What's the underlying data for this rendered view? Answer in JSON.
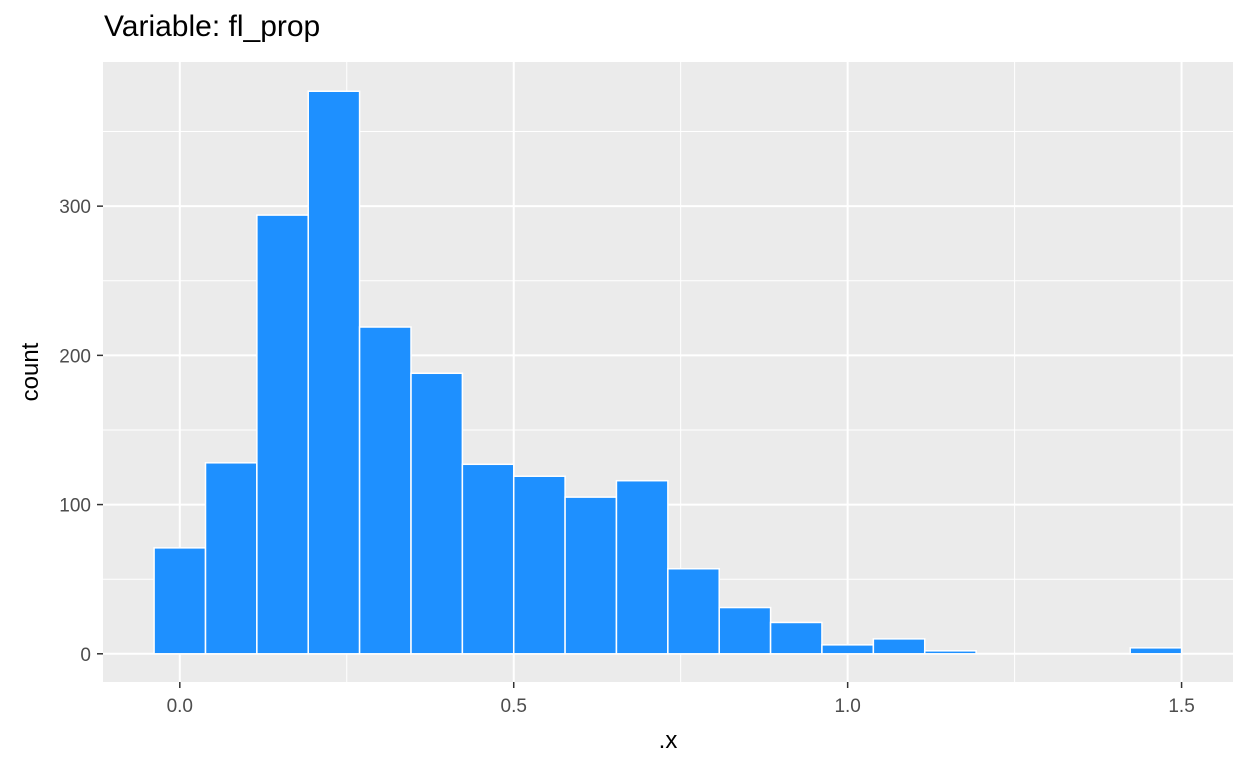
{
  "chart_data": {
    "type": "bar",
    "title": "Variable: fl_prop",
    "xlabel": ".x",
    "ylabel": "count",
    "bin_width": 0.0769,
    "bins": [
      {
        "x_start": -0.0385,
        "x_end": 0.0385,
        "count": 71
      },
      {
        "x_start": 0.0385,
        "x_end": 0.1154,
        "count": 128
      },
      {
        "x_start": 0.1154,
        "x_end": 0.1923,
        "count": 294
      },
      {
        "x_start": 0.1923,
        "x_end": 0.2692,
        "count": 377
      },
      {
        "x_start": 0.2692,
        "x_end": 0.3462,
        "count": 219
      },
      {
        "x_start": 0.3462,
        "x_end": 0.4231,
        "count": 188
      },
      {
        "x_start": 0.4231,
        "x_end": 0.5,
        "count": 127
      },
      {
        "x_start": 0.5,
        "x_end": 0.5769,
        "count": 119
      },
      {
        "x_start": 0.5769,
        "x_end": 0.6538,
        "count": 105
      },
      {
        "x_start": 0.6538,
        "x_end": 0.7308,
        "count": 116
      },
      {
        "x_start": 0.7308,
        "x_end": 0.8077,
        "count": 57
      },
      {
        "x_start": 0.8077,
        "x_end": 0.8846,
        "count": 31
      },
      {
        "x_start": 0.8846,
        "x_end": 0.9615,
        "count": 21
      },
      {
        "x_start": 0.9615,
        "x_end": 1.0385,
        "count": 6
      },
      {
        "x_start": 1.0385,
        "x_end": 1.1154,
        "count": 10
      },
      {
        "x_start": 1.1154,
        "x_end": 1.1923,
        "count": 2
      },
      {
        "x_start": 1.4231,
        "x_end": 1.5,
        "count": 4
      }
    ],
    "x_ticks": [
      0.0,
      0.5,
      1.0,
      1.5
    ],
    "x_tick_labels": [
      "0.0",
      "0.5",
      "1.0",
      "1.5"
    ],
    "y_ticks": [
      0,
      100,
      200,
      300
    ],
    "y_tick_labels": [
      "0",
      "100",
      "200",
      "300"
    ],
    "xlim": [
      -0.115,
      1.577
    ],
    "ylim": [
      -18.9,
      396.6
    ],
    "grid": true,
    "legend": "none",
    "colors": {
      "bar_fill": "#1E90FF",
      "bar_outline": "#FFFFFF",
      "panel_background": "#EBEBEB",
      "grid_line": "#FFFFFF"
    }
  }
}
